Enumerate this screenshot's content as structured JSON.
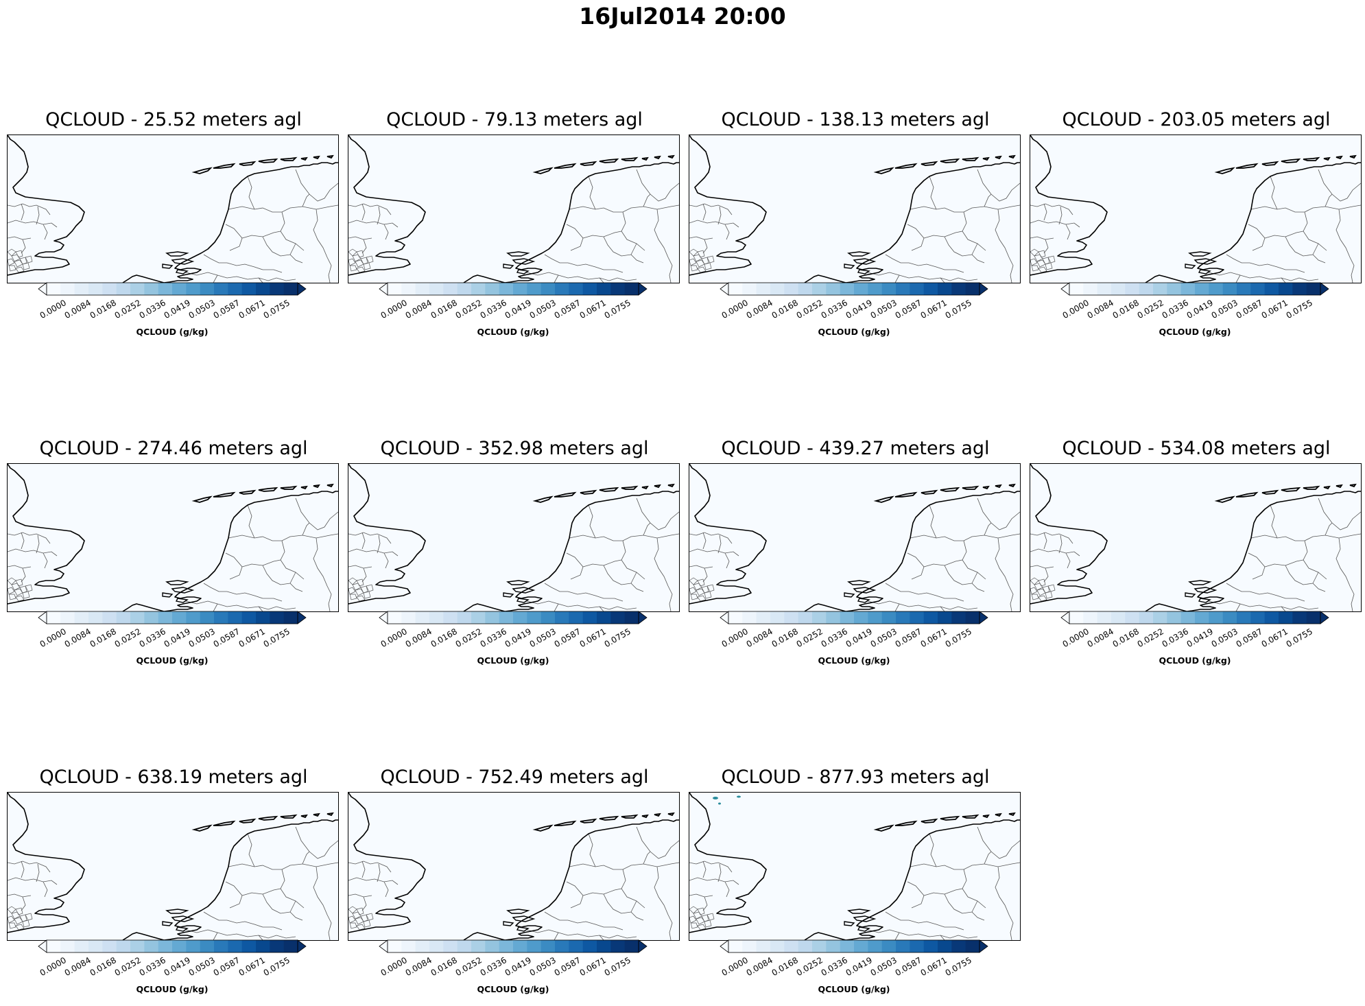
{
  "figure": {
    "title": "16Jul2014 20:00",
    "colorbar": {
      "label": "QCLOUD (g/kg)",
      "ticks": [
        "0.0000",
        "0.0084",
        "0.0168",
        "0.0252",
        "0.0336",
        "0.0419",
        "0.0503",
        "0.0587",
        "0.0671",
        "0.0755"
      ],
      "extend": "both",
      "colormap": "Blues",
      "colors": [
        "#f7fbff",
        "#eef5fc",
        "#e3eef8",
        "#d9e8f5",
        "#cee0f2",
        "#bfd8ed",
        "#abd0e6",
        "#94c4df",
        "#7cb7da",
        "#64a9d3",
        "#4f9bcb",
        "#3b8bc2",
        "#2979b9",
        "#1b69af",
        "#0e58a2",
        "#08488e",
        "#083878",
        "#08306b"
      ]
    },
    "panels": [
      {
        "title": "QCLOUD - 25.52 meters agl",
        "level_m": 25.52
      },
      {
        "title": "QCLOUD - 79.13 meters agl",
        "level_m": 79.13
      },
      {
        "title": "QCLOUD - 138.13 meters agl",
        "level_m": 138.13
      },
      {
        "title": "QCLOUD - 203.05 meters agl",
        "level_m": 203.05
      },
      {
        "title": "QCLOUD - 274.46 meters agl",
        "level_m": 274.46
      },
      {
        "title": "QCLOUD - 352.98 meters agl",
        "level_m": 352.98
      },
      {
        "title": "QCLOUD - 439.27 meters agl",
        "level_m": 439.27
      },
      {
        "title": "QCLOUD - 534.08 meters agl",
        "level_m": 534.08
      },
      {
        "title": "QCLOUD - 638.19 meters agl",
        "level_m": 638.19
      },
      {
        "title": "QCLOUD - 752.49 meters agl",
        "level_m": 752.49
      },
      {
        "title": "QCLOUD - 877.93 meters agl",
        "level_m": 877.93
      }
    ],
    "map_colors": {
      "background": "#f7fbff",
      "coastline": "#000000",
      "borders": "#555555",
      "cloud_traces": "#2a8c9c"
    }
  }
}
